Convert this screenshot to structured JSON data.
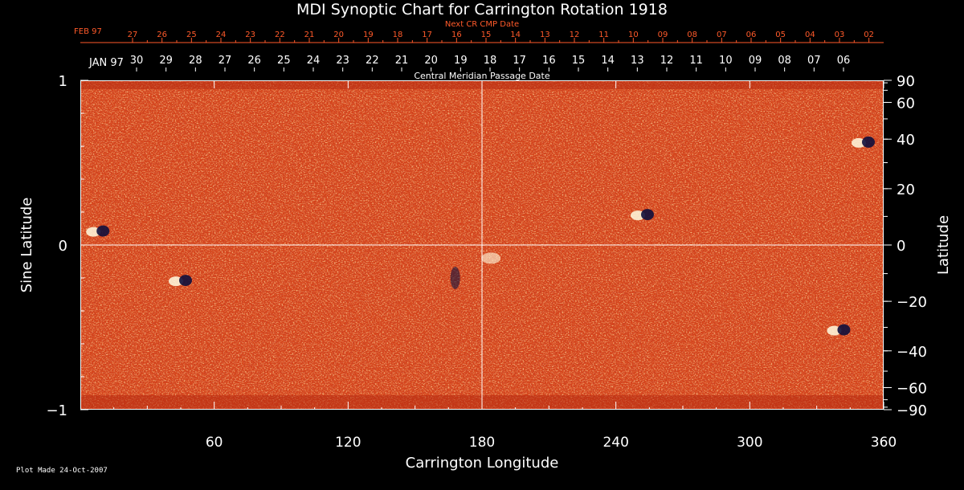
{
  "chart_data": {
    "type": "heatmap",
    "title": "MDI Synoptic Chart for Carrington Rotation 1918",
    "xlabel": "Carrington Longitude",
    "ylabel_left": "Sine Latitude",
    "ylabel_right": "Latitude",
    "xlim": [
      0,
      360
    ],
    "ylim": [
      -1,
      1
    ],
    "x_ticks": [
      60,
      120,
      180,
      240,
      300,
      360
    ],
    "y_ticks_left": [
      1,
      0,
      -1
    ],
    "y_tick_labels_left": [
      "1",
      "0",
      "−1"
    ],
    "y_ticks_right": [
      90,
      60,
      40,
      20,
      0,
      -20,
      -40,
      -60,
      -90
    ],
    "y_tick_labels_right": [
      "90",
      "60",
      "40",
      "20",
      "0",
      "−20",
      "−40",
      "−60",
      "−90"
    ],
    "cmp_axis": {
      "label": "Central Meridian Passage Date",
      "month_labels": [
        "JAN 97"
      ],
      "dates": [
        "30",
        "29",
        "28",
        "27",
        "26",
        "25",
        "24",
        "23",
        "22",
        "21",
        "20",
        "19",
        "18",
        "17",
        "16",
        "15",
        "14",
        "13",
        "12",
        "11",
        "10",
        "09",
        "08",
        "07",
        "06"
      ],
      "date_longitudes": [
        25.2,
        38.4,
        51.6,
        64.8,
        78,
        91.2,
        104.4,
        117.6,
        130.8,
        144,
        157.2,
        170.4,
        183.6,
        196.8,
        210,
        223.2,
        236.4,
        249.6,
        262.8,
        276,
        289.2,
        302.4,
        315.6,
        328.8,
        342
      ]
    },
    "next_cr_axis": {
      "label": "Next CR CMP Date",
      "month_labels": [
        "FEB 97"
      ],
      "dates": [
        "27",
        "26",
        "25",
        "24",
        "23",
        "22",
        "21",
        "20",
        "19",
        "18",
        "17",
        "16",
        "15",
        "14",
        "13",
        "12",
        "11",
        "10",
        "09",
        "08",
        "07",
        "06",
        "05",
        "04",
        "03",
        "02"
      ],
      "date_longitudes": [
        23.4,
        36.6,
        49.8,
        63,
        76.2,
        89.4,
        102.6,
        115.8,
        129,
        142.2,
        155.4,
        168.6,
        181.8,
        195,
        208.2,
        221.4,
        234.6,
        247.8,
        261,
        274.2,
        287.4,
        300.6,
        313.8,
        327,
        340.2,
        353.4
      ]
    },
    "reference_lines": {
      "x": [
        180
      ],
      "y": [
        0
      ]
    },
    "colormap": {
      "background": "#d5431a",
      "positive": "#fffbe0",
      "negative": "#10103c",
      "weak_negative": "#a41d10"
    },
    "features": [
      {
        "lon": 8,
        "sinlat": 0.08,
        "polarity": "bipolar"
      },
      {
        "lon": 45,
        "sinlat": -0.22,
        "polarity": "bipolar"
      },
      {
        "lon": 168,
        "sinlat": -0.2,
        "polarity": "negative"
      },
      {
        "lon": 184,
        "sinlat": -0.08,
        "polarity": "positive"
      },
      {
        "lon": 252,
        "sinlat": 0.18,
        "polarity": "bipolar"
      },
      {
        "lon": 340,
        "sinlat": -0.52,
        "polarity": "bipolar"
      },
      {
        "lon": 351,
        "sinlat": 0.62,
        "polarity": "bipolar"
      }
    ]
  },
  "footer": {
    "plot_made": "Plot Made 24-Oct-2007"
  }
}
